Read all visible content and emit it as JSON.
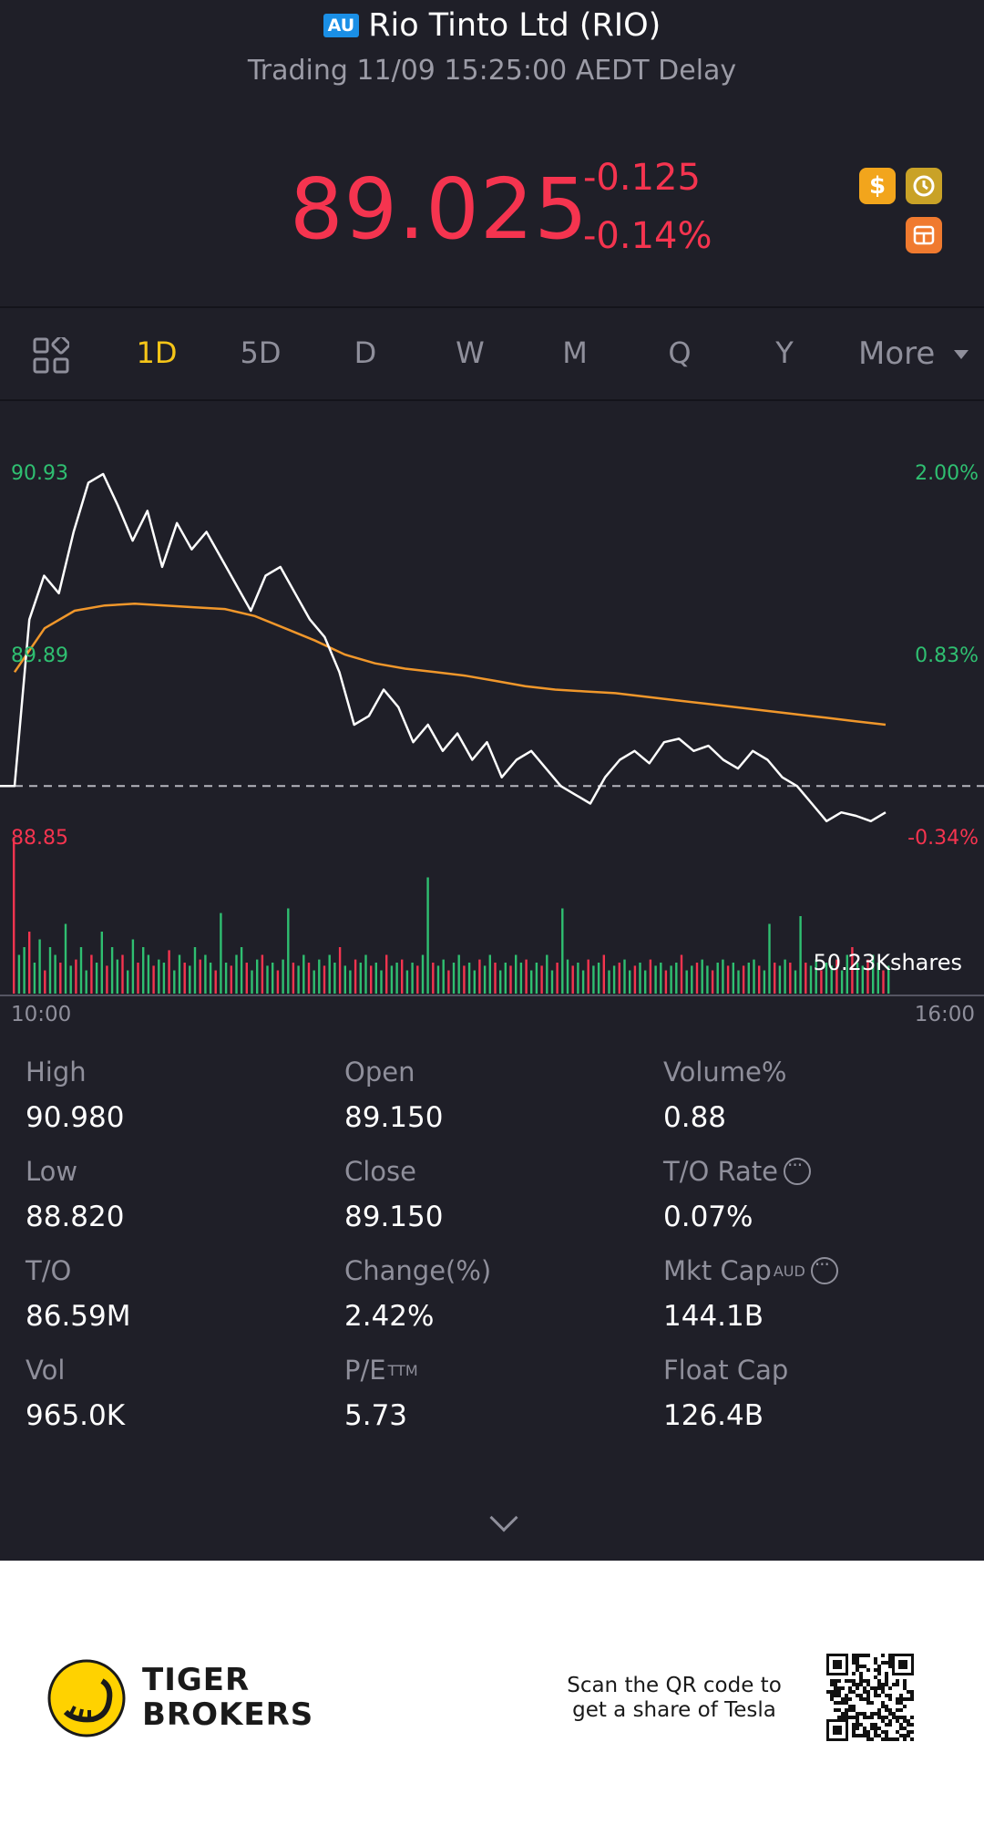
{
  "header": {
    "market_badge": "AU",
    "title": "Rio Tinto Ltd (RIO)",
    "status": "Trading 11/09 15:25:00 AEDT Delay",
    "price": "89.025",
    "change": "-0.125",
    "change_pct": "-0.14%",
    "icons": [
      "dollar-icon",
      "history-icon",
      "trade-icon"
    ],
    "down_color": "#f5344f"
  },
  "tabs": {
    "items": [
      "1D",
      "5D",
      "D",
      "W",
      "M",
      "Q",
      "Y"
    ],
    "active": "1D",
    "more_label": "More"
  },
  "chart_data": {
    "type": "line",
    "x_start_label": "10:00",
    "x_end_label": "16:00",
    "left_ticks": [
      "90.93",
      "89.89",
      "88.85"
    ],
    "right_ticks": [
      "2.00%",
      "0.83%",
      "-0.34%"
    ],
    "ylim": [
      88.85,
      90.93
    ],
    "prev_close": 89.15,
    "volume_label": "50.23Kshares",
    "series": [
      {
        "role": "price",
        "color": "#ffffff",
        "values": [
          89.15,
          90.1,
          90.35,
          90.25,
          90.6,
          90.88,
          90.93,
          90.75,
          90.55,
          90.72,
          90.4,
          90.65,
          90.5,
          90.6,
          90.45,
          90.3,
          90.15,
          90.35,
          90.4,
          90.25,
          90.1,
          90.0,
          89.8,
          89.5,
          89.55,
          89.7,
          89.6,
          89.4,
          89.5,
          89.35,
          89.45,
          89.3,
          89.4,
          89.2,
          89.3,
          89.35,
          89.25,
          89.15,
          89.1,
          89.05,
          89.2,
          89.3,
          89.35,
          89.28,
          89.4,
          89.42,
          89.35,
          89.38,
          89.3,
          89.25,
          89.35,
          89.3,
          89.2,
          89.15,
          89.05,
          88.95,
          89.0,
          88.98,
          88.95,
          89.0
        ]
      },
      {
        "role": "average",
        "color": "#f0972b",
        "values": [
          89.8,
          90.05,
          90.15,
          90.18,
          90.19,
          90.18,
          90.17,
          90.16,
          90.12,
          90.05,
          89.98,
          89.9,
          89.85,
          89.82,
          89.8,
          89.78,
          89.75,
          89.72,
          89.7,
          89.69,
          89.68,
          89.66,
          89.64,
          89.62,
          89.6,
          89.58,
          89.56,
          89.54,
          89.52,
          89.5
        ]
      }
    ],
    "volume": [
      100,
      25,
      30,
      40,
      20,
      35,
      15,
      30,
      25,
      20,
      45,
      18,
      22,
      30,
      15,
      25,
      20,
      40,
      18,
      30,
      22,
      25,
      15,
      35,
      20,
      30,
      25,
      18,
      22,
      20,
      28,
      15,
      25,
      20,
      18,
      30,
      22,
      25,
      20,
      15,
      52,
      20,
      18,
      25,
      30,
      20,
      15,
      22,
      25,
      18,
      20,
      15,
      22,
      55,
      20,
      18,
      25,
      20,
      15,
      22,
      18,
      25,
      20,
      30,
      18,
      15,
      22,
      20,
      25,
      18,
      20,
      15,
      25,
      18,
      20,
      22,
      15,
      20,
      18,
      25,
      75,
      20,
      18,
      22,
      15,
      20,
      25,
      18,
      20,
      15,
      22,
      18,
      25,
      20,
      15,
      20,
      18,
      25,
      20,
      22,
      15,
      20,
      18,
      25,
      15,
      20,
      55,
      22,
      18,
      20,
      15,
      22,
      18,
      20,
      25,
      15,
      18,
      20,
      22,
      15,
      18,
      20,
      15,
      22,
      18,
      20,
      15,
      18,
      20,
      25,
      15,
      18,
      20,
      22,
      18,
      15,
      20,
      22,
      18,
      20,
      15,
      18,
      20,
      22,
      18,
      15,
      45,
      20,
      18,
      22,
      20,
      15,
      50,
      20,
      18,
      22,
      15,
      20,
      18,
      22,
      15,
      25,
      30,
      20,
      18,
      22,
      25,
      20,
      15,
      18
    ]
  },
  "stats": [
    {
      "label": "High",
      "value": "90.980"
    },
    {
      "label": "Open",
      "value": "89.150"
    },
    {
      "label": "Volume%",
      "value": "0.88"
    },
    {
      "label": "Low",
      "value": "88.820"
    },
    {
      "label": "Close",
      "value": "89.150"
    },
    {
      "label": "T/O Rate",
      "value": "0.07%",
      "info": true
    },
    {
      "label": "T/O",
      "value": "86.59M"
    },
    {
      "label": "Change(%)",
      "value": "2.42%"
    },
    {
      "label": "Mkt Cap",
      "sup": "AUD",
      "value": "144.1B",
      "info": true
    },
    {
      "label": "Vol",
      "value": "965.0K"
    },
    {
      "label": "P/E",
      "sup": "TTM",
      "value": "5.73"
    },
    {
      "label": "Float Cap",
      "value": "126.4B"
    }
  ],
  "footer": {
    "brand_line1": "TIGER",
    "brand_line2": "BROKERS",
    "promo_line1": "Scan the QR code to",
    "promo_line2": "get a share of Tesla"
  }
}
